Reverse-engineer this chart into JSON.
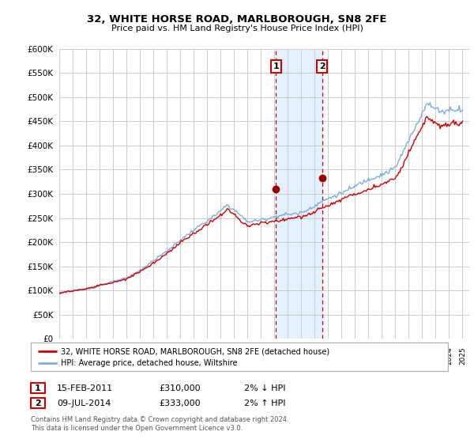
{
  "title": "32, WHITE HORSE ROAD, MARLBOROUGH, SN8 2FE",
  "subtitle": "Price paid vs. HM Land Registry's House Price Index (HPI)",
  "ylabel_ticks": [
    "£0",
    "£50K",
    "£100K",
    "£150K",
    "£200K",
    "£250K",
    "£300K",
    "£350K",
    "£400K",
    "£450K",
    "£500K",
    "£550K",
    "£600K"
  ],
  "ylim": [
    0,
    600000
  ],
  "ytick_vals": [
    0,
    50000,
    100000,
    150000,
    200000,
    250000,
    300000,
    350000,
    400000,
    450000,
    500000,
    550000,
    600000
  ],
  "event1_date": 2011.12,
  "event2_date": 2014.54,
  "event1_price": 310000,
  "event2_price": 333000,
  "legend_line1": "32, WHITE HORSE ROAD, MARLBOROUGH, SN8 2FE (detached house)",
  "legend_line2": "HPI: Average price, detached house, Wiltshire",
  "footer": "Contains HM Land Registry data © Crown copyright and database right 2024.\nThis data is licensed under the Open Government Licence v3.0.",
  "line_color_red": "#cc0000",
  "line_color_blue": "#7aade0",
  "shade_color": "#ddeeff",
  "grid_color": "#cccccc",
  "xmin": 1995,
  "xmax": 2025.5
}
